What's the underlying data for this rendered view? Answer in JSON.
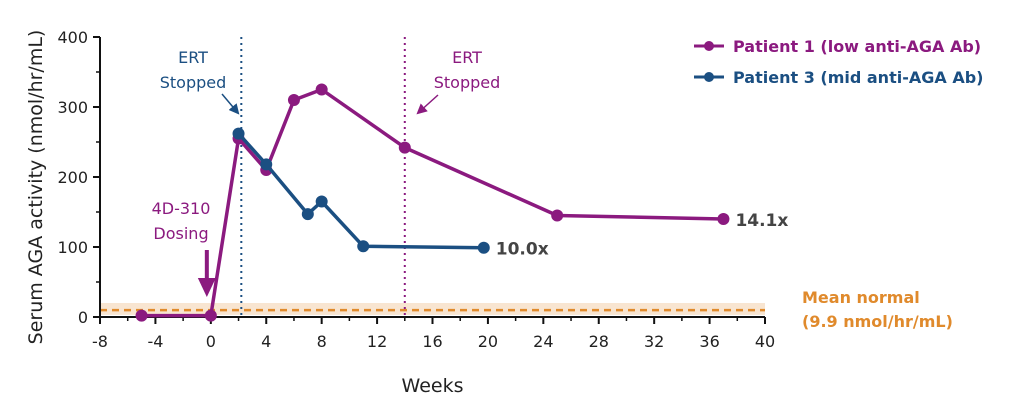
{
  "chart_data": {
    "type": "line",
    "xlabel": "Weeks",
    "ylabel": "Serum AGA activity (nmol/hr/mL)",
    "xlim": [
      -8,
      40
    ],
    "ylim": [
      0,
      400
    ],
    "xticks": [
      "-8",
      "-4",
      "0",
      "4",
      "8",
      "12",
      "16",
      "20",
      "24",
      "28",
      "32",
      "36",
      "40"
    ],
    "yticks": [
      "0",
      "100",
      "200",
      "300",
      "400"
    ],
    "grid": false,
    "legend_position": "top-right",
    "series": [
      {
        "name": "Patient 1 (low anti-AGA Ab)",
        "color": "#8b1a7f",
        "x": [
          -5,
          0,
          2,
          4,
          6,
          8,
          14,
          25,
          37
        ],
        "y": [
          2,
          2,
          255,
          210,
          310,
          325,
          242,
          145,
          140
        ],
        "end_label": "14.1x"
      },
      {
        "name": "Patient 3 (mid anti-AGA Ab)",
        "color": "#1b4f82",
        "x": [
          2,
          4,
          7,
          8,
          11,
          19.7
        ],
        "y": [
          262,
          218,
          147,
          165,
          101,
          99
        ],
        "end_label": "10.0x"
      }
    ],
    "reference_line": {
      "value": 9.9,
      "color": "#e08a2c",
      "band": [
        3,
        20
      ],
      "label_line1": "Mean normal",
      "label_line2": "(9.9 nmol/hr/mL)"
    },
    "annotations": [
      {
        "text_line1": "ERT",
        "text_line2": "Stopped",
        "x": 2.2,
        "color": "#1b4f82",
        "applies_to": "Patient 3"
      },
      {
        "text_line1": "ERT",
        "text_line2": "Stopped",
        "x": 14,
        "color": "#8b1a7f",
        "applies_to": "Patient 1"
      },
      {
        "text_line1": "4D-310",
        "text_line2": "Dosing",
        "x": 0,
        "color": "#8b1a7f"
      }
    ]
  }
}
